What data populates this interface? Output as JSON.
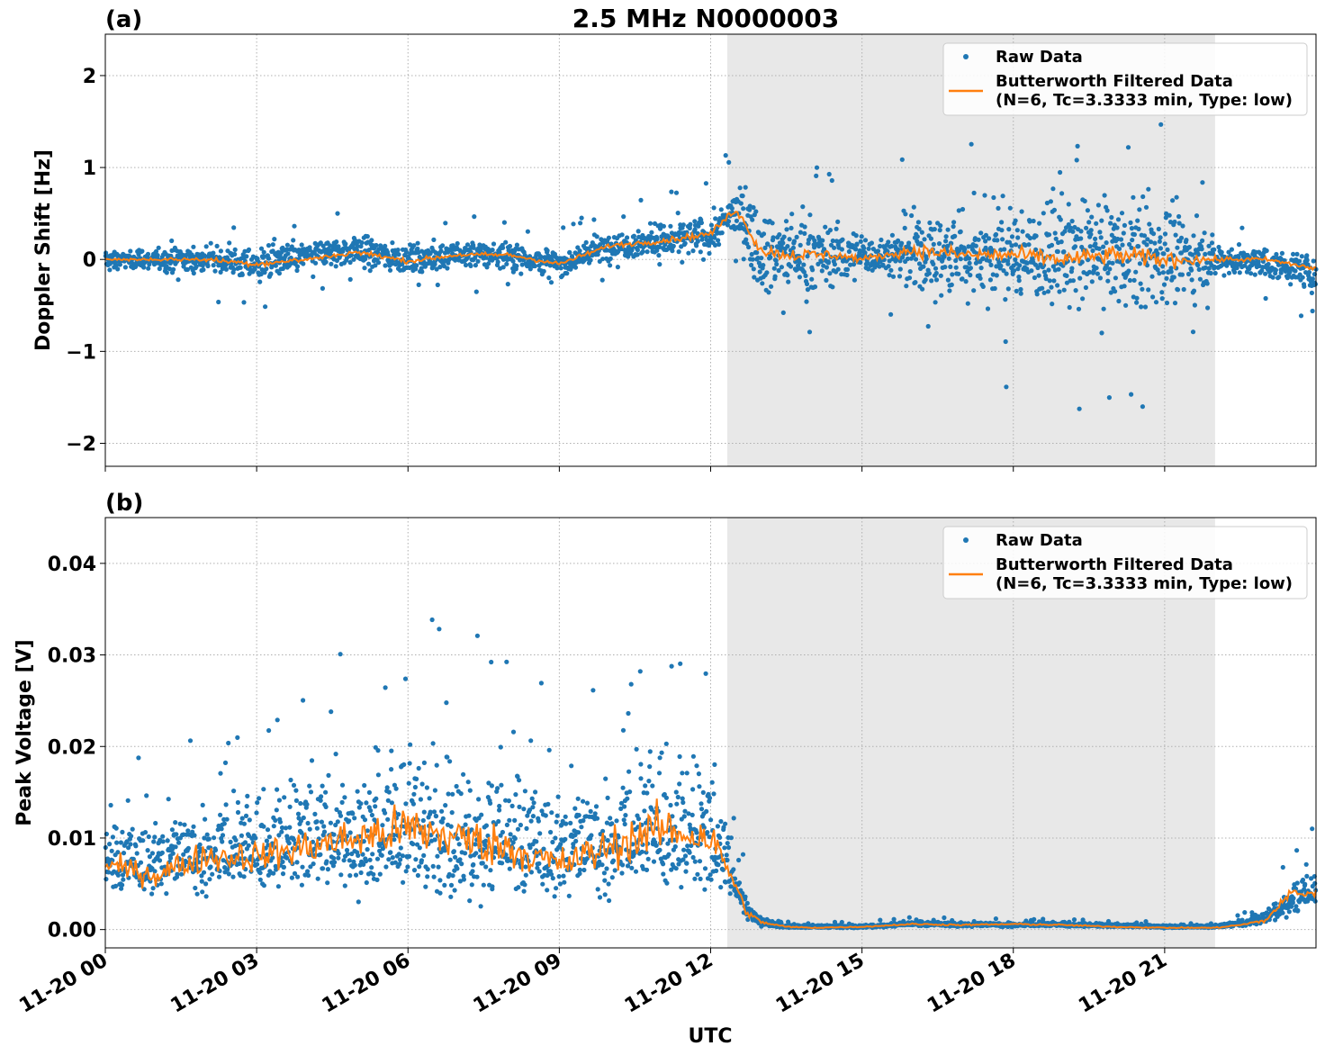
{
  "figure": {
    "title": "2.5 MHz N0000003",
    "xlabel": "UTC",
    "x_ticks": [
      "11-20 00",
      "11-20 03",
      "11-20 06",
      "11-20 09",
      "11-20 12",
      "11-20 15",
      "11-20 18",
      "11-20 21"
    ],
    "shaded_interval_hours": [
      12.33,
      22.0
    ]
  },
  "legend": {
    "raw_label": "Raw Data",
    "filtered_label_line1": "Butterworth Filtered Data",
    "filtered_label_line2": "(N=6, Tc=3.3333 min, Type: low)"
  },
  "colors": {
    "raw": "#1f77b4",
    "filtered": "#ff7f0e",
    "shade": "#e8e8e8",
    "grid": "#b0b0b0"
  },
  "chart_data": [
    {
      "type": "scatter",
      "panel_label": "(a)",
      "ylabel": "Doppler Shift [Hz]",
      "xlim_hours": [
        0,
        24
      ],
      "ylim": [
        -2.25,
        2.45
      ],
      "y_ticks": [
        "2",
        "1",
        "0",
        "−1",
        "−2"
      ],
      "y_tick_values": [
        2,
        1,
        0,
        -1,
        -2
      ],
      "x_unit": "hours since 11-20 00:00 UTC",
      "series": [
        {
          "name": "Raw Data",
          "style": "points",
          "x": [
            0,
            1,
            2,
            3,
            4,
            5,
            6,
            7,
            8,
            9,
            10,
            11,
            12,
            12.5,
            13,
            13.5,
            14,
            14.5,
            15,
            15.5,
            16,
            17,
            18,
            19,
            20,
            21,
            22,
            23,
            24
          ],
          "y_median": [
            0,
            0,
            0,
            -0.05,
            0.05,
            0.1,
            0,
            0.05,
            0.05,
            -0.05,
            0.15,
            0.2,
            0.25,
            0.55,
            0.1,
            0.05,
            0.05,
            0.05,
            0.05,
            0.05,
            0.05,
            0.05,
            0.05,
            0.05,
            0.05,
            0.05,
            0.0,
            -0.05,
            -0.15
          ],
          "y_spread": [
            0.1,
            0.15,
            0.2,
            0.25,
            0.2,
            0.25,
            0.2,
            0.2,
            0.2,
            0.2,
            0.2,
            0.25,
            0.3,
            0.35,
            0.6,
            0.55,
            0.55,
            0.45,
            0.3,
            0.3,
            0.6,
            0.65,
            0.7,
            0.75,
            0.8,
            0.8,
            0.25,
            0.2,
            0.25
          ]
        },
        {
          "name": "Butterworth Filtered Data",
          "style": "line",
          "x": [
            0,
            1,
            2,
            3,
            4,
            5,
            6,
            7,
            8,
            9,
            10,
            11,
            12,
            12.5,
            13,
            13.5,
            14,
            14.5,
            15,
            15.5,
            16,
            17,
            18,
            19,
            20,
            21,
            22,
            23,
            24
          ],
          "y": [
            0,
            0,
            0,
            -0.05,
            0.0,
            0.08,
            -0.02,
            0.05,
            0.05,
            -0.05,
            0.15,
            0.2,
            0.28,
            0.55,
            0.1,
            0.05,
            0.05,
            0.05,
            0.0,
            0.05,
            0.1,
            0.05,
            0.05,
            0.0,
            0.05,
            0.0,
            0.0,
            0.0,
            -0.1
          ]
        }
      ]
    },
    {
      "type": "scatter",
      "panel_label": "(b)",
      "ylabel": "Peak Voltage [V]",
      "xlim_hours": [
        0,
        24
      ],
      "ylim": [
        -0.002,
        0.045
      ],
      "y_ticks": [
        "0.04",
        "0.03",
        "0.02",
        "0.01",
        "0.00"
      ],
      "y_tick_values": [
        0.04,
        0.03,
        0.02,
        0.01,
        0.0
      ],
      "x_unit": "hours since 11-20 00:00 UTC",
      "series": [
        {
          "name": "Raw Data",
          "style": "points",
          "x": [
            0,
            1,
            2,
            3,
            4,
            5,
            6,
            7,
            8,
            9,
            10,
            11,
            12,
            12.4,
            12.7,
            13,
            13.5,
            14,
            15,
            16,
            17,
            18,
            19,
            20,
            21,
            22,
            22.5,
            23,
            23.5,
            24
          ],
          "y_median": [
            0.007,
            0.007,
            0.008,
            0.008,
            0.009,
            0.009,
            0.01,
            0.009,
            0.009,
            0.008,
            0.009,
            0.01,
            0.009,
            0.006,
            0.002,
            0.0008,
            0.0003,
            0.0003,
            0.0003,
            0.0006,
            0.0005,
            0.0005,
            0.0005,
            0.0004,
            0.0003,
            0.0003,
            0.0006,
            0.0012,
            0.003,
            0.004
          ],
          "y_spread": [
            0.004,
            0.005,
            0.006,
            0.006,
            0.007,
            0.008,
            0.01,
            0.009,
            0.008,
            0.007,
            0.008,
            0.009,
            0.008,
            0.004,
            0.0015,
            0.0006,
            0.0003,
            0.0002,
            0.0002,
            0.0003,
            0.0003,
            0.0003,
            0.0003,
            0.0002,
            0.0002,
            0.0002,
            0.0004,
            0.0008,
            0.002,
            0.003
          ]
        },
        {
          "name": "Butterworth Filtered Data",
          "style": "line",
          "x": [
            0,
            1,
            2,
            3,
            4,
            5,
            6,
            7,
            8,
            9,
            10,
            11,
            12,
            12.4,
            12.7,
            13,
            13.5,
            14,
            15,
            16,
            17,
            18,
            19,
            20,
            21,
            22,
            22.5,
            23,
            23.5,
            24
          ],
          "y": [
            0.007,
            0.006,
            0.008,
            0.008,
            0.009,
            0.01,
            0.011,
            0.01,
            0.009,
            0.007,
            0.009,
            0.011,
            0.01,
            0.006,
            0.002,
            0.0008,
            0.0003,
            0.0002,
            0.0003,
            0.0006,
            0.0005,
            0.0006,
            0.0005,
            0.0003,
            0.0002,
            0.0002,
            0.0005,
            0.001,
            0.004,
            0.004
          ]
        }
      ]
    }
  ]
}
